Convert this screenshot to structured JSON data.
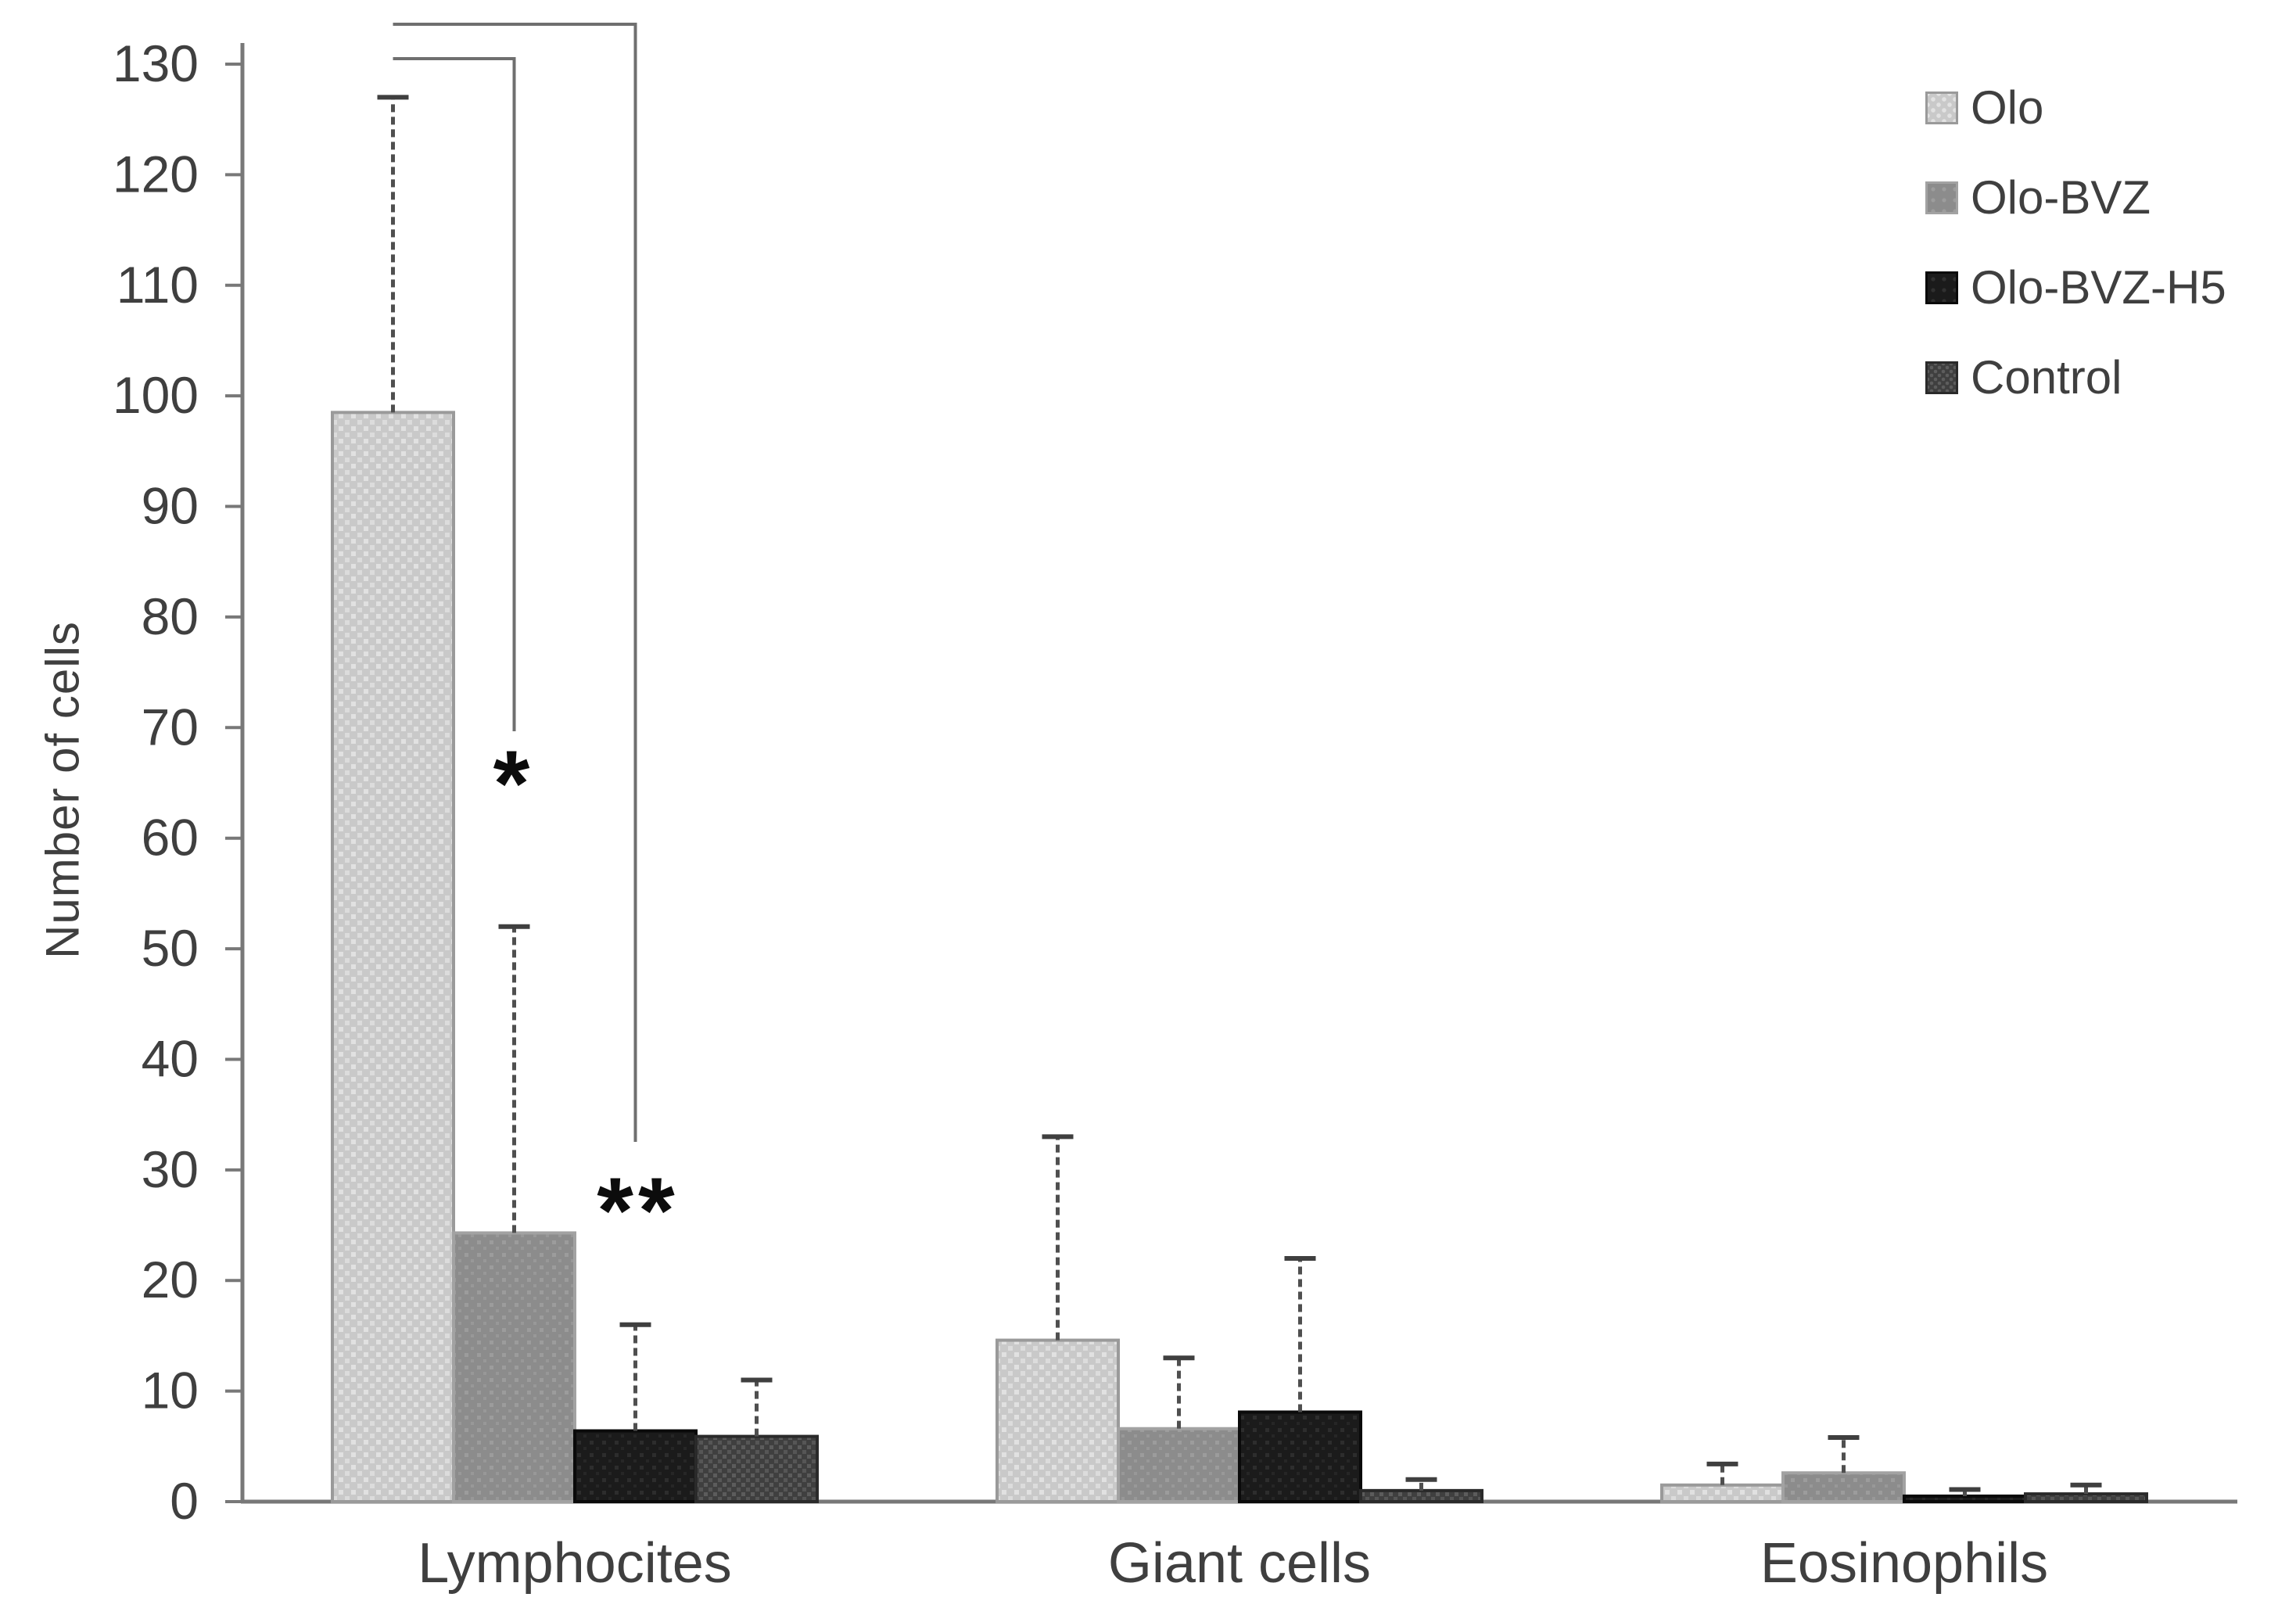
{
  "y_axis": {
    "label": "Number of cells",
    "tick_min": 0,
    "tick_max": 130,
    "tick_step": 10
  },
  "x_axis": {
    "categories": [
      "Lymphocites",
      "Giant cells",
      "Eosinophils"
    ]
  },
  "legend": {
    "position": "top-right",
    "items": [
      {
        "label": "Olo",
        "swatch": "light-gray-dotted"
      },
      {
        "label": "Olo-BVZ",
        "swatch": "medium-gray"
      },
      {
        "label": "Olo-BVZ-H5",
        "swatch": "black"
      },
      {
        "label": "Control",
        "swatch": "dark-gray-checker"
      }
    ]
  },
  "colors": {
    "axis": "#787878",
    "text": "#3f3f3f",
    "error_bar": "#4f4f4f",
    "error_cap": "#3f3f3f",
    "bracket": "#6f6f6f",
    "olo_fill": "#c9c9c9",
    "olo_bvz_fill": "#8c8c8c",
    "olo_bvz_h5_fill": "#1b1b1b",
    "control_fill": "#3f3f3f"
  },
  "chart_data": {
    "type": "bar",
    "title": "",
    "xlabel": "",
    "ylabel": "Number of cells",
    "ylim": [
      0,
      130
    ],
    "ytick_step": 10,
    "grid": false,
    "legend_position": "top-right",
    "error_bars": "upper SD whiskers with caps",
    "categories": [
      "Lymphocites",
      "Giant cells",
      "Eosinophils"
    ],
    "series": [
      {
        "name": "Olo",
        "fill": "light gray with dot texture",
        "color": "#c9c9c9",
        "values": [
          98.5,
          14.6,
          1.5
        ],
        "error_up": [
          28.5,
          18.4,
          1.9
        ]
      },
      {
        "name": "Olo-BVZ",
        "fill": "medium gray",
        "color": "#8c8c8c",
        "values": [
          24.3,
          6.6,
          2.6
        ],
        "error_up": [
          27.7,
          6.4,
          3.2
        ]
      },
      {
        "name": "Olo-BVZ-H5",
        "fill": "black",
        "color": "#1b1b1b",
        "values": [
          6.4,
          8.1,
          0.5
        ],
        "error_up": [
          9.6,
          13.9,
          0.6
        ]
      },
      {
        "name": "Control",
        "fill": "dark gray with checker texture",
        "color": "#3f3f3f",
        "values": [
          5.9,
          1.0,
          0.7
        ],
        "error_up": [
          5.1,
          1.0,
          0.8
        ]
      }
    ],
    "annotations": [
      {
        "text": "*",
        "category": "Lymphocites",
        "between": [
          "Olo",
          "Olo-BVZ"
        ],
        "meaning": "significance bracket from Olo bar to Olo-BVZ bar"
      },
      {
        "text": "**",
        "category": "Lymphocites",
        "between": [
          "Olo",
          "Olo-BVZ-H5"
        ],
        "meaning": "significance bracket from Olo bar to Olo-BVZ-H5 bar"
      }
    ]
  }
}
